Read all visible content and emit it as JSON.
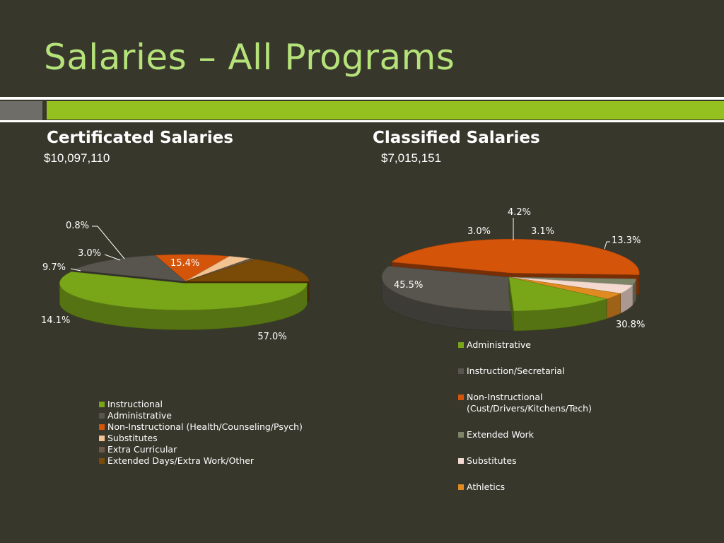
{
  "page": {
    "title": "Salaries – All Programs"
  },
  "certificated": {
    "title": "Certificated Salaries",
    "total": "$10,097,110"
  },
  "classified": {
    "title": "Classified Salaries",
    "total": "$7,015,151"
  },
  "chart_data": [
    {
      "type": "pie",
      "title": "Certificated Salaries",
      "subtitle": "$10,097,110",
      "three_d": true,
      "legend_position": "bottom",
      "slices": [
        {
          "label": "Instructional",
          "value": 57.0,
          "display": "57.0%",
          "color": "#79a519",
          "exploded": true
        },
        {
          "label": "Administrative",
          "value": 14.1,
          "display": "14.1%",
          "color": "#57554d"
        },
        {
          "label": "Non-Instructional (Health/Counseling/Psych)",
          "value": 9.7,
          "display": "9.7%",
          "color": "#d4540a"
        },
        {
          "label": "Substitutes",
          "value": 3.0,
          "display": "3.0%",
          "color": "#f2c391"
        },
        {
          "label": "Extra Curricular",
          "value": 0.8,
          "display": "0.8%",
          "color": "#6b5a4a"
        },
        {
          "label": "Extended Days/Extra Work/Other",
          "value": 15.4,
          "display": "15.4%",
          "color": "#7a4a07"
        }
      ]
    },
    {
      "type": "pie",
      "title": "Classified Salaries",
      "subtitle": "$7,015,151",
      "three_d": true,
      "legend_position": "right",
      "slices": [
        {
          "label": "Administrative",
          "value": 13.3,
          "display": "13.3%",
          "color": "#79a519"
        },
        {
          "label": "Instruction/Secretarial",
          "value": 30.8,
          "display": "30.8%",
          "color": "#57554d"
        },
        {
          "label": "Non-Instructional (Cust/Drivers/Kitchens/Tech)",
          "label_lines": [
            "Non-Instructional",
            "(Cust/Drivers/Kitchens/Tech)"
          ],
          "value": 45.5,
          "display": "45.5%",
          "color": "#d4540a",
          "exploded": true
        },
        {
          "label": "Extended Work",
          "value": 3.0,
          "display": "3.0%",
          "color": "#7e8468"
        },
        {
          "label": "Substitutes",
          "value": 4.2,
          "display": "4.2%",
          "color": "#f3d9cf"
        },
        {
          "label": "Athletics",
          "value": 3.1,
          "display": "3.1%",
          "color": "#e08a22"
        }
      ]
    }
  ]
}
